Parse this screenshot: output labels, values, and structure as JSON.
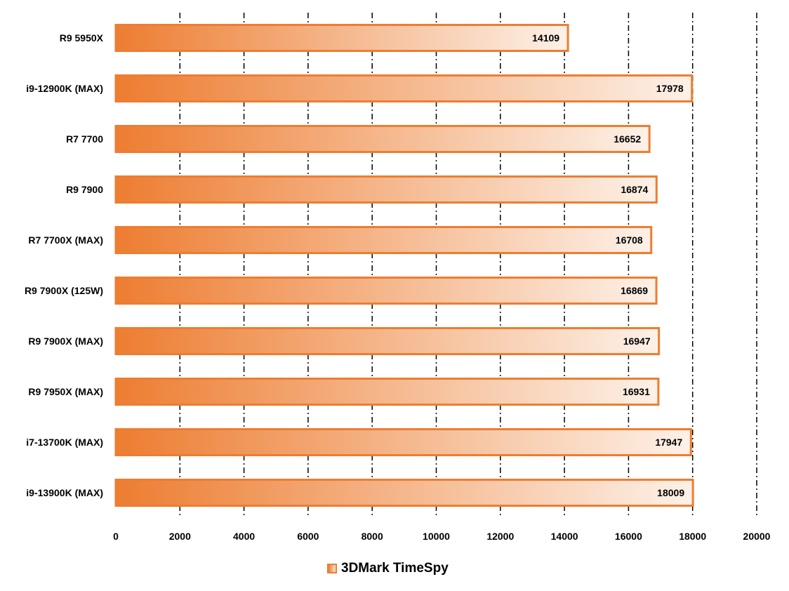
{
  "chart_data": {
    "type": "bar",
    "orientation": "horizontal",
    "categories": [
      "R9 5950X",
      "i9-12900K (MAX)",
      "R7 7700",
      "R9 7900",
      "R7 7700X (MAX)",
      "R9 7900X (125W)",
      "R9 7900X (MAX)",
      "R9 7950X (MAX)",
      "i7-13700K (MAX)",
      "i9-13900K (MAX)"
    ],
    "series": [
      {
        "name": "3DMark TimeSpy",
        "values": [
          14109,
          17978,
          16652,
          16874,
          16708,
          16869,
          16947,
          16931,
          17947,
          18009
        ]
      }
    ],
    "xlim": [
      0,
      20000
    ],
    "xticks": [
      0,
      2000,
      4000,
      6000,
      8000,
      10000,
      12000,
      14000,
      16000,
      18000,
      20000
    ],
    "grid": "vertical dash-dot",
    "legend_position": "bottom",
    "colors": {
      "bar_start": "#ED7D31",
      "bar_end": "#FDF1E8",
      "bar_border": "#ED7D31",
      "grid": "#000000"
    }
  }
}
